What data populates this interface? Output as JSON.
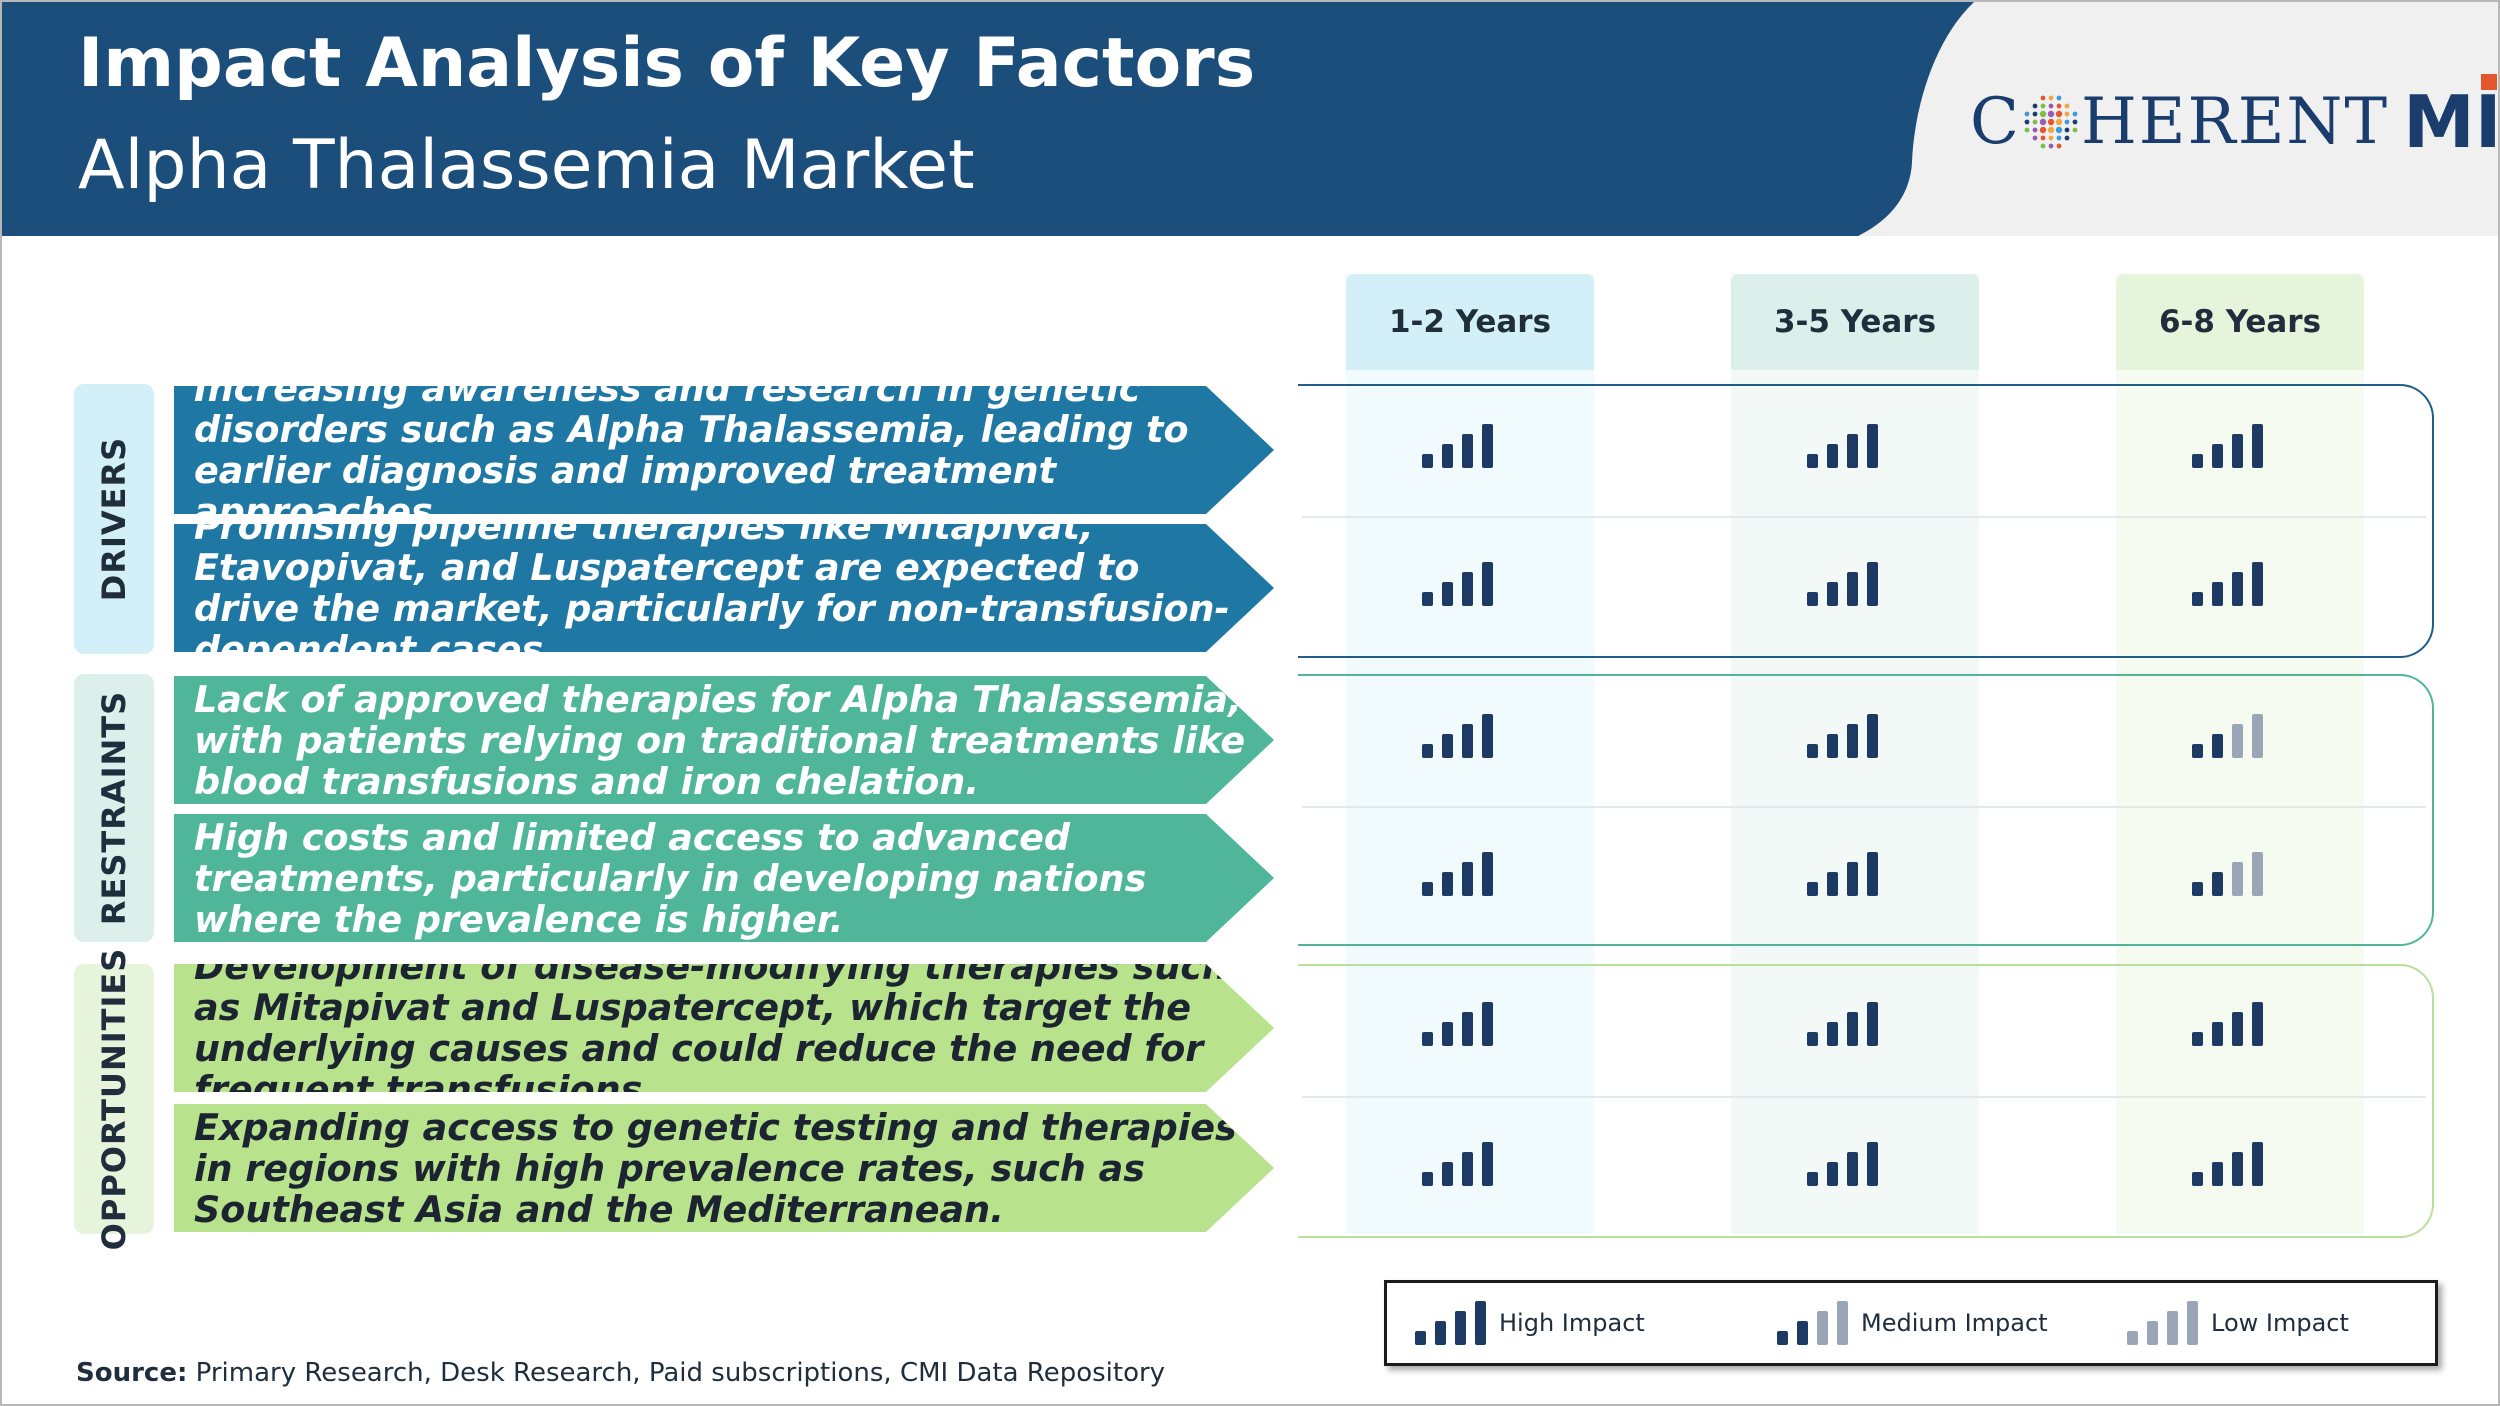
{
  "header": {
    "title": "Impact Analysis of Key Factors",
    "subtitle": "Alpha Thalassemia Market",
    "logo_text_left": "C",
    "logo_text_right": "HERENT",
    "logo_suffix_m": "M",
    "logo_suffix_i": "I",
    "colors": {
      "banner": "#1c4e7c",
      "logo_panel": "#f0f0f0",
      "logo_text": "#1a3d6e"
    }
  },
  "columns": [
    {
      "label": "1-2 Years",
      "header_color": "#d3f0f8",
      "body_color": "#f1fafd"
    },
    {
      "label": "3-5 Years",
      "header_color": "#dcefea",
      "body_color": "#f2f9f7"
    },
    {
      "label": "6-8 Years",
      "header_color": "#e6f4dc",
      "body_color": "#f5fbf1"
    }
  ],
  "groups": [
    {
      "label": "DRIVERS",
      "label_bg": "#d3f0f8",
      "outline_color": "#1e5f8a",
      "arrow_color": "#1f78a4",
      "text_color": "#ffffff",
      "rows": [
        {
          "text": "Increasing awareness and research in genetic disorders such as Alpha Thalassemia, leading to earlier diagnosis and improved treatment approaches.",
          "impacts": [
            "high",
            "high",
            "high"
          ]
        },
        {
          "text": "Promising pipeline therapies like Mitapivat, Etavopivat, and Luspatercept are expected to drive the market, particularly for non-transfusion-dependent cases.",
          "impacts": [
            "high",
            "high",
            "high"
          ]
        }
      ]
    },
    {
      "label": "RESTRAINTS",
      "label_bg": "#dcefea",
      "outline_color": "#52b59a",
      "arrow_color": "#4fb69a",
      "text_color": "#ffffff",
      "rows": [
        {
          "text": "Lack of approved therapies for Alpha Thalassemia, with patients relying on traditional treatments like blood transfusions and iron chelation.",
          "impacts": [
            "high",
            "high",
            "medium"
          ]
        },
        {
          "text": "High costs and limited access to advanced treatments, particularly in developing nations where the prevalence is higher.",
          "impacts": [
            "high",
            "high",
            "medium"
          ]
        }
      ]
    },
    {
      "label": "OPPORTUNITIES",
      "label_bg": "#e6f4dc",
      "outline_color": "#b9e09a",
      "arrow_color": "#b8e38c",
      "text_color": "#1b2430",
      "rows": [
        {
          "text": "Development of disease-modifying therapies such as Mitapivat and Luspatercept, which target the underlying causes and could reduce the need for frequent transfusions.",
          "impacts": [
            "high",
            "high",
            "high"
          ]
        },
        {
          "text": "Expanding access to genetic testing and therapies in regions with high prevalence rates, such as Southeast Asia and the Mediterranean.",
          "impacts": [
            "high",
            "high",
            "high"
          ]
        }
      ]
    }
  ],
  "impact_levels": {
    "high": {
      "label": "High Impact",
      "colors": [
        "#1c3a63",
        "#1c3a63",
        "#1c3a63",
        "#1c3a63"
      ]
    },
    "medium": {
      "label": "Medium Impact",
      "colors": [
        "#1c3a63",
        "#1c3a63",
        "#9aa6b8",
        "#9aa6b8"
      ]
    },
    "low": {
      "label": "Low Impact",
      "colors": [
        "#9aa6b8",
        "#9aa6b8",
        "#9aa6b8",
        "#9aa6b8"
      ]
    }
  },
  "legend": [
    "high",
    "medium",
    "low"
  ],
  "source": {
    "label": "Source:",
    "text": " Primary Research, Desk Research, Paid subscriptions, CMI Data Repository"
  }
}
